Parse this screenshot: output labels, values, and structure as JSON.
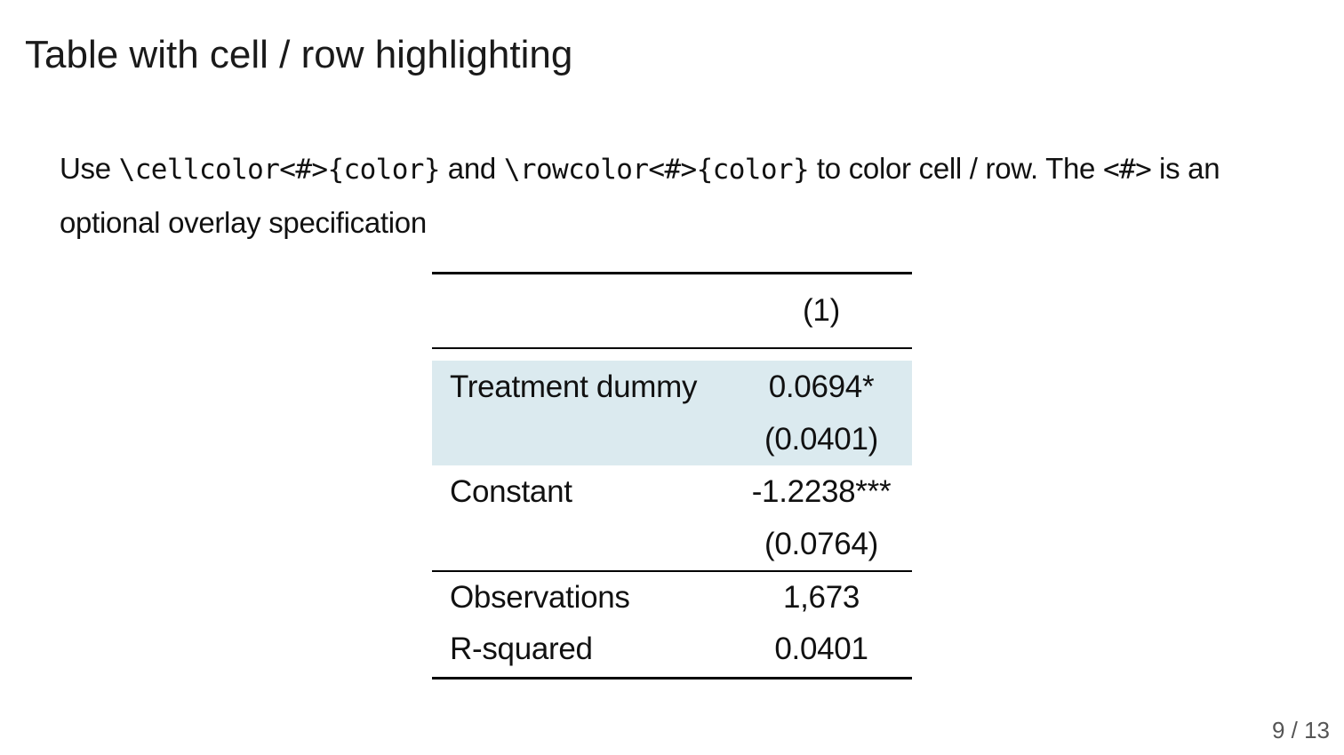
{
  "slide": {
    "title": "Table with cell / row highlighting",
    "text": {
      "p1": "Use ",
      "code1": "\\cellcolor<#>{color}",
      "p2": " and ",
      "code2": "\\rowcolor<#>{color}",
      "p3": " to color cell / row. The ",
      "code3": "<#>",
      "p4": " is an optional overlay specification"
    },
    "page_number": "9 / 13"
  },
  "table": {
    "column_header": "(1)",
    "rows": [
      {
        "label": "Treatment dummy",
        "coef": "0.0694*",
        "se": "(0.0401)",
        "highlighted": true
      },
      {
        "label": "Constant",
        "coef": "-1.2238***",
        "se": "(0.0764)",
        "highlighted": false
      }
    ],
    "stats": [
      {
        "label": "Observations",
        "value": "1,673"
      },
      {
        "label": "R-squared",
        "value": "0.0401"
      }
    ],
    "highlight_color": "#dbeaef"
  }
}
